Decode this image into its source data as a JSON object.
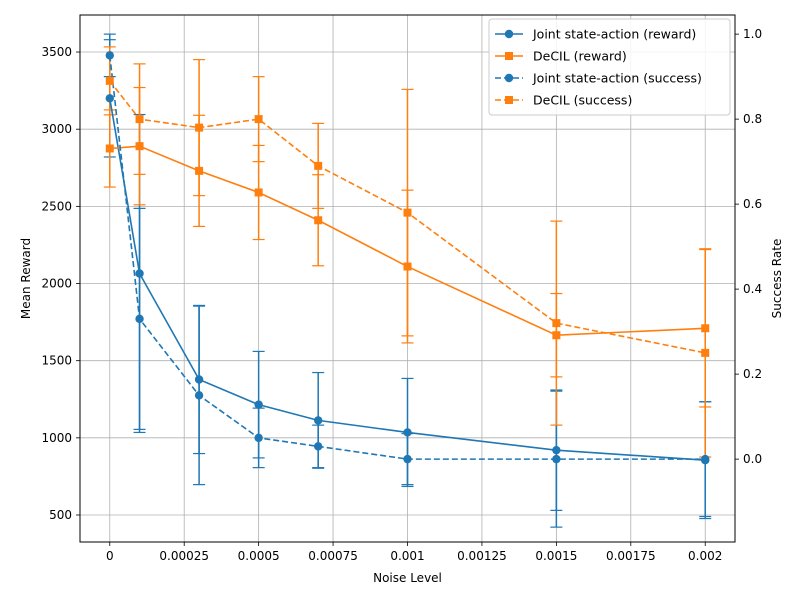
{
  "chart_data": {
    "type": "line",
    "xlabel": "Noise Level",
    "ylabel_left": "Mean Reward",
    "ylabel_right": "Success Rate",
    "xlim": [
      -0.0001,
      0.0021
    ],
    "ylim_left": [
      325,
      3740
    ],
    "ylim_right": [
      -0.195,
      1.045
    ],
    "grid": true,
    "legend_position": "top-right",
    "x_ticks": [
      0,
      0.00025,
      0.0005,
      0.00075,
      0.001,
      0.00125,
      0.0015,
      0.00175,
      0.002
    ],
    "x_tick_labels": [
      "0",
      "0.00025",
      "0.0005",
      "0.00075",
      "0.001",
      "0.00125",
      "0.0015",
      "0.00175",
      "0.002"
    ],
    "y_left_ticks": [
      500,
      1000,
      1500,
      2000,
      2500,
      3000,
      3500
    ],
    "y_left_tick_labels": [
      "500",
      "1000",
      "1500",
      "2000",
      "2500",
      "3000",
      "3500"
    ],
    "y_right_ticks": [
      0.0,
      0.2,
      0.4,
      0.6,
      0.8,
      1.0
    ],
    "y_right_tick_labels": [
      "0.0",
      "0.2",
      "0.4",
      "0.6",
      "0.8",
      "1.0"
    ],
    "x": [
      0,
      0.0001,
      0.0003,
      0.0005,
      0.0007,
      0.001,
      0.0015,
      0.002
    ],
    "series": [
      {
        "name": "Joint state-action (reward)",
        "axis": "left",
        "color": "#1f77b4",
        "linestyle": "solid",
        "marker": "circle",
        "values": [
          3200,
          2065,
          1378,
          1215,
          1113,
          1035,
          920,
          855
        ],
        "errors": [
          380,
          1030,
          480,
          345,
          310,
          350,
          390,
          378
        ]
      },
      {
        "name": "DeCIL (reward)",
        "axis": "left",
        "color": "#ff7f0e",
        "linestyle": "solid",
        "marker": "square",
        "values": [
          2875,
          2890,
          2730,
          2590,
          2410,
          2110,
          1665,
          1710
        ],
        "errors": [
          250,
          380,
          360,
          305,
          295,
          495,
          270,
          510
        ]
      },
      {
        "name": "Joint state-action (success)",
        "axis": "right",
        "color": "#1f77b4",
        "linestyle": "dashed",
        "marker": "circle",
        "values": [
          0.95,
          0.33,
          0.15,
          0.05,
          0.03,
          0.0,
          0.0,
          0.0
        ],
        "errors": [
          0.05,
          0.26,
          0.21,
          0.07,
          0.05,
          0.06,
          0.16,
          0.135
        ]
      },
      {
        "name": "DeCIL (success)",
        "axis": "right",
        "color": "#ff7f0e",
        "linestyle": "dashed",
        "marker": "square",
        "values": [
          0.89,
          0.8,
          0.78,
          0.8,
          0.69,
          0.58,
          0.32,
          0.25
        ],
        "errors": [
          0.08,
          0.13,
          0.16,
          0.1,
          0.1,
          0.29,
          0.24,
          0.245
        ]
      }
    ]
  }
}
